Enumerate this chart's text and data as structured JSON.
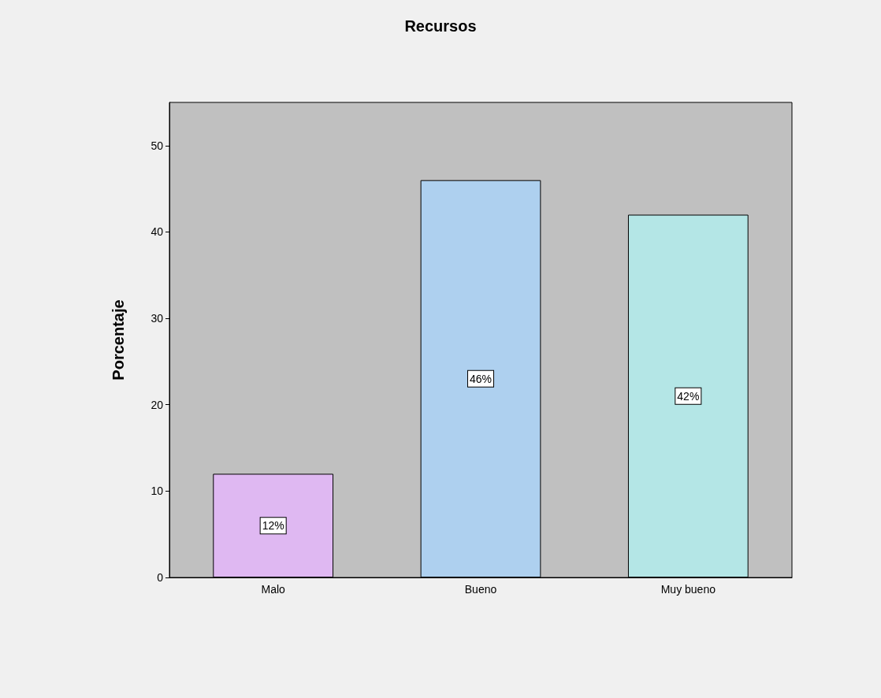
{
  "chart_data": {
    "type": "bar",
    "title": "Recursos",
    "ylabel": "Porcentaje",
    "categories": [
      "Malo",
      "Bueno",
      "Muy bueno"
    ],
    "values": [
      12,
      46,
      42
    ],
    "value_labels": [
      "12%",
      "46%",
      "42%"
    ],
    "colors": [
      "#dfb8f2",
      "#aed0ef",
      "#b4e6e6"
    ],
    "ylim": [
      0,
      55
    ],
    "yticks": [
      0,
      10,
      20,
      30,
      40,
      50
    ],
    "grid": false
  }
}
